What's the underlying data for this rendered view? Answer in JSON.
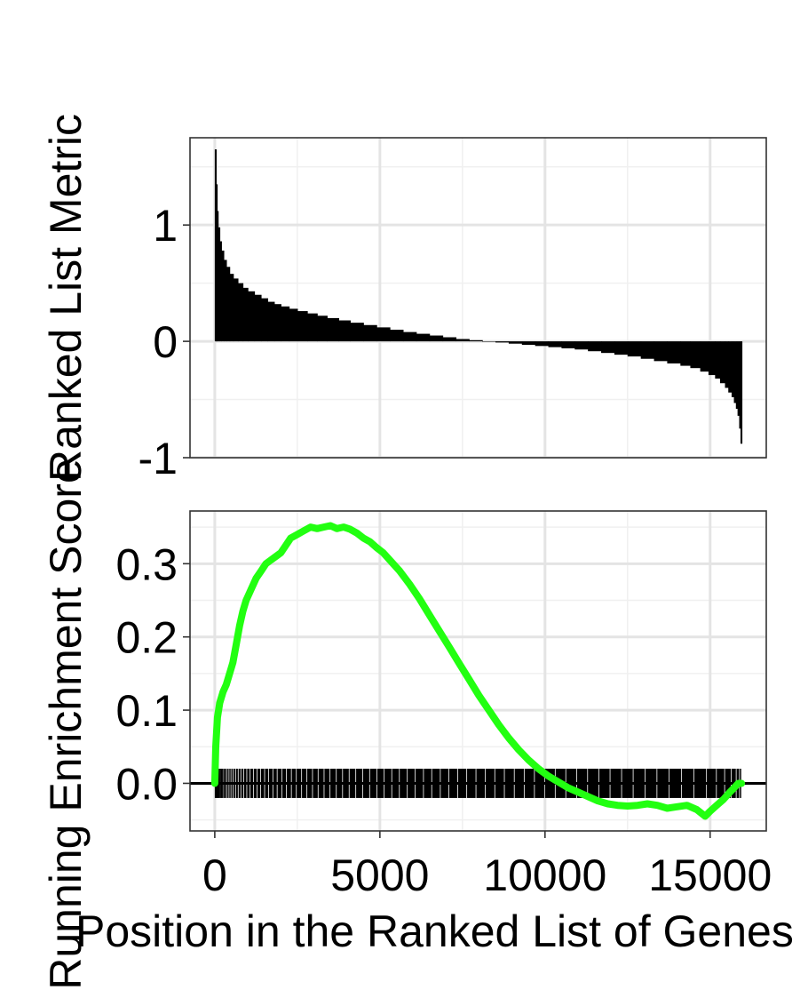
{
  "chart_data": [
    {
      "type": "bar",
      "panel": "ranked-list-metric",
      "ylabel": "Ranked List Metric",
      "xlim": [
        -750,
        16700
      ],
      "ylim": [
        -1,
        1.75
      ],
      "yticks": [
        -1,
        0,
        1
      ],
      "ytick_labels": [
        "-1",
        "0",
        "1"
      ],
      "xticks": [
        0,
        5000,
        10000,
        15000
      ],
      "grid": true,
      "color": "#000000",
      "x": [
        0,
        30,
        60,
        100,
        150,
        200,
        270,
        350,
        450,
        560,
        700,
        850,
        1000,
        1200,
        1400,
        1600,
        1800,
        2000,
        2250,
        2500,
        2800,
        3100,
        3400,
        3750,
        4100,
        4500,
        4900,
        5300,
        5700,
        6100,
        6500,
        6900,
        7300,
        7700,
        8100,
        8500,
        8900,
        9300,
        9700,
        10100,
        10500,
        10900,
        11300,
        11700,
        12100,
        12500,
        12900,
        13300,
        13700,
        14100,
        14400,
        14700,
        14950,
        15150,
        15300,
        15450,
        15550,
        15650,
        15720,
        15780,
        15830,
        15880,
        15920
      ],
      "values": [
        1.65,
        1.35,
        1.12,
        0.98,
        0.86,
        0.78,
        0.7,
        0.64,
        0.58,
        0.54,
        0.5,
        0.46,
        0.43,
        0.4,
        0.37,
        0.34,
        0.32,
        0.3,
        0.28,
        0.26,
        0.24,
        0.22,
        0.2,
        0.18,
        0.16,
        0.14,
        0.12,
        0.1,
        0.08,
        0.065,
        0.05,
        0.035,
        0.02,
        0.01,
        0.0,
        -0.01,
        -0.02,
        -0.03,
        -0.04,
        -0.05,
        -0.06,
        -0.07,
        -0.085,
        -0.1,
        -0.115,
        -0.13,
        -0.15,
        -0.17,
        -0.19,
        -0.21,
        -0.23,
        -0.26,
        -0.29,
        -0.32,
        -0.36,
        -0.4,
        -0.44,
        -0.48,
        -0.53,
        -0.58,
        -0.64,
        -0.75,
        -0.88
      ]
    },
    {
      "type": "line",
      "panel": "running-enrichment-score",
      "ylabel": "Running Enrichment Score",
      "xlabel": "Position in the Ranked List of Genes",
      "xlim": [
        -750,
        16700
      ],
      "ylim": [
        -0.065,
        0.372
      ],
      "yticks": [
        0.0,
        0.1,
        0.2,
        0.3
      ],
      "ytick_labels": [
        "0.0",
        "0.1",
        "0.2",
        "0.3"
      ],
      "xticks": [
        0,
        5000,
        10000,
        15000
      ],
      "xtick_labels": [
        "0",
        "5000",
        "10000",
        "15000"
      ],
      "grid": true,
      "hline": 0,
      "line_color": "#22ff11",
      "series": [
        {
          "x": [
            0,
            30,
            80,
            150,
            250,
            350,
            450,
            550,
            650,
            750,
            850,
            950,
            1100,
            1250,
            1400,
            1550,
            1700,
            1850,
            2000,
            2150,
            2300,
            2500,
            2700,
            2900,
            3100,
            3300,
            3500,
            3700,
            3900,
            4100,
            4300,
            4500,
            4700,
            4900,
            5100,
            5300,
            5600,
            5900,
            6200,
            6500,
            6800,
            7100,
            7400,
            7700,
            8000,
            8300,
            8600,
            8900,
            9200,
            9500,
            9800,
            10100,
            10400,
            10700,
            11000,
            11300,
            11600,
            11900,
            12200,
            12500,
            12800,
            13100,
            13400,
            13700,
            14000,
            14300,
            14600,
            14850,
            15000,
            15200,
            15400,
            15600,
            15750,
            15850,
            15950
          ],
          "values": [
            0.0,
            0.05,
            0.09,
            0.11,
            0.125,
            0.135,
            0.15,
            0.165,
            0.19,
            0.215,
            0.235,
            0.25,
            0.265,
            0.28,
            0.29,
            0.3,
            0.305,
            0.31,
            0.315,
            0.325,
            0.335,
            0.34,
            0.345,
            0.35,
            0.348,
            0.35,
            0.352,
            0.348,
            0.35,
            0.347,
            0.342,
            0.335,
            0.33,
            0.322,
            0.315,
            0.305,
            0.29,
            0.272,
            0.252,
            0.23,
            0.208,
            0.186,
            0.164,
            0.142,
            0.12,
            0.1,
            0.08,
            0.062,
            0.046,
            0.032,
            0.02,
            0.01,
            0.002,
            -0.006,
            -0.012,
            -0.018,
            -0.024,
            -0.028,
            -0.03,
            -0.031,
            -0.03,
            -0.028,
            -0.03,
            -0.034,
            -0.032,
            -0.03,
            -0.036,
            -0.045,
            -0.038,
            -0.03,
            -0.022,
            -0.012,
            -0.005,
            0.0,
            0.0
          ]
        }
      ],
      "hit_marks": {
        "ymin": -0.02,
        "ymax": 0.02,
        "color": "#000000",
        "x": [
          0,
          20,
          40,
          70,
          100,
          140,
          180,
          220,
          270,
          320,
          380,
          440,
          500,
          570,
          640,
          720,
          800,
          890,
          980,
          1080,
          1180,
          1290,
          1400,
          1520,
          1640,
          1770,
          1900,
          2040,
          2180,
          2330,
          2480,
          2640,
          2800,
          2970,
          3140,
          3320,
          3500,
          3690,
          3880,
          4080,
          4280,
          4490,
          4700,
          4920,
          5140,
          5370,
          5600,
          5840,
          6080,
          6330,
          6580,
          6840,
          7100,
          7370,
          7640,
          7920,
          8200,
          8490,
          8780,
          9080,
          9380,
          9690,
          10000,
          10320,
          10640,
          10970,
          11300,
          11640,
          11980,
          12330,
          12680,
          13040,
          13400,
          13770,
          14140,
          14520,
          14900,
          15200,
          15450,
          15650,
          15800,
          15900
        ]
      }
    }
  ]
}
